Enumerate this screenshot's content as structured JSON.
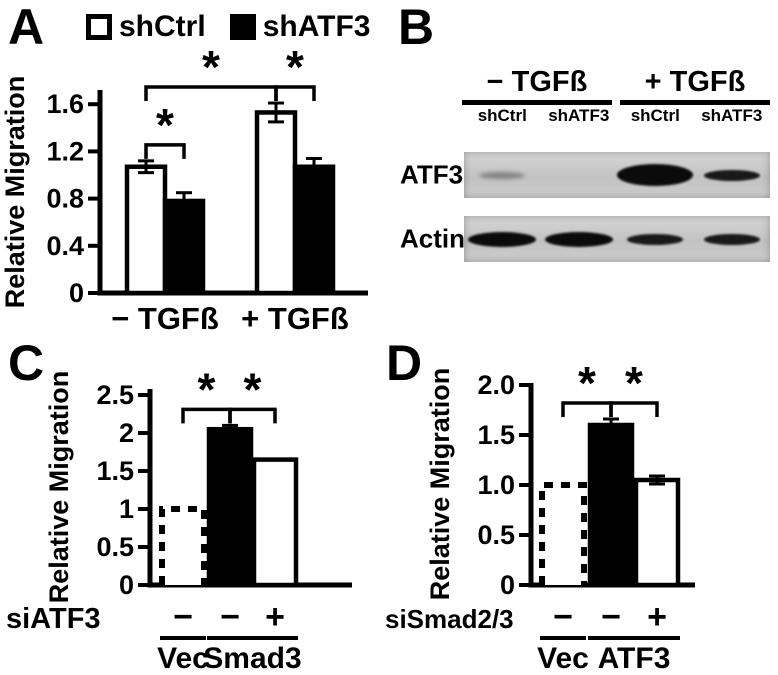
{
  "figure": {
    "background": "#ffffff",
    "panels": {
      "a": {
        "letter": "A"
      },
      "b": {
        "letter": "B"
      },
      "c": {
        "letter": "C"
      },
      "d": {
        "letter": "D"
      }
    }
  },
  "legend_a": {
    "position": "top",
    "items": [
      {
        "label": "shCtrl",
        "style": "open"
      },
      {
        "label": "shATF3",
        "style": "filled"
      }
    ]
  },
  "chart_data": [
    {
      "id": "a",
      "type": "bar",
      "title": "",
      "ylabel": "Relative Migration",
      "ylim": [
        0,
        1.75
      ],
      "grid": false,
      "yticks": [
        {
          "v": 0,
          "t": "0"
        },
        {
          "v": 0.4,
          "t": "0.4"
        },
        {
          "v": 0.8,
          "t": "0.8"
        },
        {
          "v": 1.2,
          "t": "1.2"
        },
        {
          "v": 1.6,
          "t": "1.6"
        }
      ],
      "groups": [
        "− TGFß",
        "+ TGFß"
      ],
      "series": [
        "shCtrl",
        "shATF3"
      ],
      "bars": [
        {
          "group": "− TGFß",
          "series": "shCtrl",
          "value": 1.07,
          "error": 0.05,
          "style": "open"
        },
        {
          "group": "− TGFß",
          "series": "shATF3",
          "value": 0.78,
          "error": 0.07,
          "style": "filled"
        },
        {
          "group": "+ TGFß",
          "series": "shCtrl",
          "value": 1.53,
          "error": 0.08,
          "style": "open"
        },
        {
          "group": "+ TGFß",
          "series": "shATF3",
          "value": 1.07,
          "error": 0.07,
          "style": "filled"
        }
      ],
      "significance": [
        {
          "bars": [
            0,
            1
          ],
          "label": "*"
        },
        {
          "bars": [
            0,
            2
          ],
          "label": "*"
        },
        {
          "bars": [
            2,
            3
          ],
          "label": "*"
        }
      ]
    },
    {
      "id": "c",
      "type": "bar",
      "title": "",
      "ylabel": "Relative Migration",
      "ylim": [
        0,
        2.6
      ],
      "grid": false,
      "yticks": [
        {
          "v": 0,
          "t": "0"
        },
        {
          "v": 0.5,
          "t": "0.5"
        },
        {
          "v": 1,
          "t": "1"
        },
        {
          "v": 1.5,
          "t": "1.5"
        },
        {
          "v": 2,
          "t": "2"
        },
        {
          "v": 2.5,
          "t": "2.5"
        }
      ],
      "bars": [
        {
          "group": "Vec",
          "condition": "−",
          "value": 1.0,
          "error": 0,
          "style": "dashed"
        },
        {
          "group": "Smad3",
          "condition": "−",
          "value": 2.05,
          "error": 0.05,
          "style": "filled"
        },
        {
          "group": "Smad3",
          "condition": "+",
          "value": 1.65,
          "error": 0,
          "style": "open"
        }
      ],
      "significance": [
        {
          "bars": [
            0,
            1
          ],
          "label": "*"
        },
        {
          "bars": [
            1,
            2
          ],
          "label": "*"
        }
      ],
      "xrow": {
        "label": "siATF3",
        "symbols": [
          "−",
          "−",
          "+"
        ]
      },
      "xgroups": [
        {
          "label": "Vec",
          "bars": [
            0
          ]
        },
        {
          "label": "Smad3",
          "bars": [
            1,
            2
          ]
        }
      ]
    },
    {
      "id": "d",
      "type": "bar",
      "title": "",
      "ylabel": "Relative Migration",
      "ylim": [
        0,
        2.1
      ],
      "grid": false,
      "yticks": [
        {
          "v": 0,
          "t": "0"
        },
        {
          "v": 0.5,
          "t": "0.5"
        },
        {
          "v": 1,
          "t": "1.0"
        },
        {
          "v": 1.5,
          "t": "1.5"
        },
        {
          "v": 2,
          "t": "2.0"
        }
      ],
      "bars": [
        {
          "group": "Vec",
          "condition": "−",
          "value": 1.0,
          "error": 0,
          "style": "dashed"
        },
        {
          "group": "ATF3",
          "condition": "−",
          "value": 1.6,
          "error": 0.06,
          "style": "filled"
        },
        {
          "group": "ATF3",
          "condition": "+",
          "value": 1.05,
          "error": 0.04,
          "style": "open"
        }
      ],
      "significance": [
        {
          "bars": [
            0,
            1
          ],
          "label": "*"
        },
        {
          "bars": [
            1,
            2
          ],
          "label": "*"
        }
      ],
      "xrow": {
        "label": "siSmad2/3",
        "symbols": [
          "−",
          "−",
          "+"
        ]
      },
      "xgroups": [
        {
          "label": "Vec",
          "bars": [
            0
          ]
        },
        {
          "label": "ATF3",
          "bars": [
            1,
            2
          ]
        }
      ]
    }
  ],
  "blot": {
    "conditions": [
      {
        "label": "− TGFß",
        "lanes": [
          "shCtrl",
          "shATF3"
        ]
      },
      {
        "label": "+ TGFß",
        "lanes": [
          "shCtrl",
          "shATF3"
        ]
      }
    ],
    "lanes": [
      "shCtrl",
      "shATF3",
      "shCtrl",
      "shATF3"
    ],
    "rows": [
      {
        "label": "ATF3",
        "bands": [
          "faint",
          "none",
          "intense",
          "medium"
        ]
      },
      {
        "label": "Actin",
        "bands": [
          "strong",
          "strong",
          "medium",
          "medium"
        ]
      }
    ]
  }
}
